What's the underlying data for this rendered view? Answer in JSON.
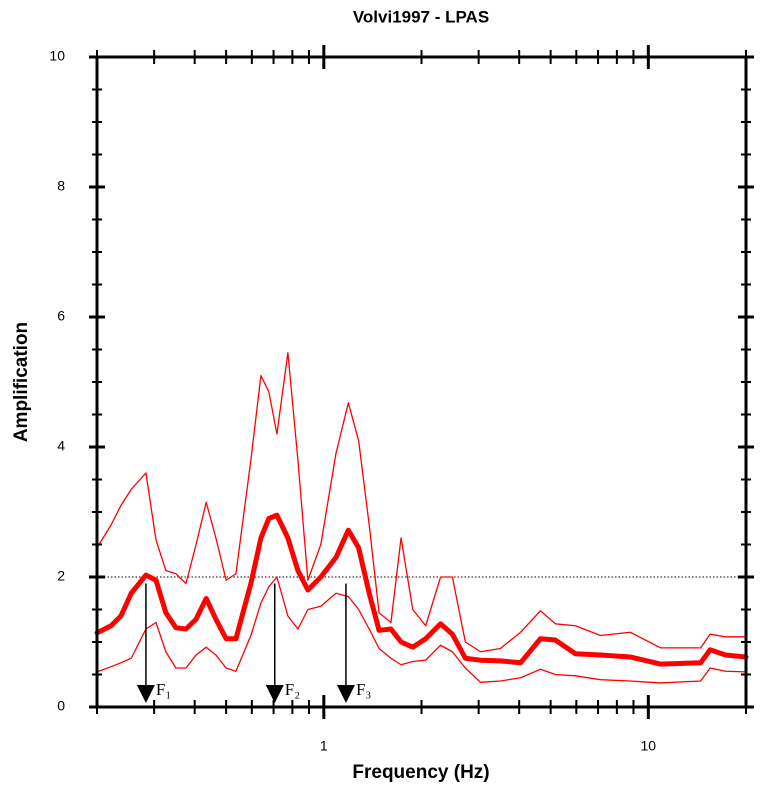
{
  "chart_data": {
    "type": "line",
    "title": "Volvi1997 - LPAS",
    "x_label": "Frequency (Hz)",
    "y_label": "Amplification",
    "x_scale": "log",
    "xlim": [
      0.2,
      20
    ],
    "ylim": [
      0,
      10
    ],
    "xticks": [
      1,
      10
    ],
    "yticks": [
      0,
      2,
      4,
      6,
      8,
      10
    ],
    "xminorticks": [
      0.2,
      0.3,
      0.4,
      0.5,
      0.6,
      0.7,
      0.8,
      0.9,
      2,
      3,
      4,
      5,
      6,
      7,
      8,
      9,
      20
    ],
    "yminorticks": [
      0.5,
      1,
      1.5,
      2.5,
      3,
      3.5,
      4.5,
      5,
      5.5,
      6.5,
      7,
      7.5,
      8.5,
      9,
      9.5
    ],
    "reference_line": {
      "y": 2,
      "color": "#000000"
    },
    "x": [
      0.2,
      0.221,
      0.237,
      0.255,
      0.283,
      0.304,
      0.326,
      0.35,
      0.376,
      0.404,
      0.434,
      0.465,
      0.5,
      0.536,
      0.596,
      0.64,
      0.677,
      0.717,
      0.775,
      0.832,
      0.893,
      0.979,
      1.09,
      1.19,
      1.28,
      1.38,
      1.48,
      1.61,
      1.73,
      1.88,
      2.06,
      2.29,
      2.49,
      2.73,
      3.04,
      3.5,
      4.04,
      4.65,
      5.17,
      5.96,
      7.12,
      8.8,
      10.9,
      14.5,
      15.5,
      17.3,
      20
    ],
    "series": [
      {
        "color": "#ff0000",
        "linewidth": 1.3,
        "values": [
          2.45,
          2.8,
          3.1,
          3.35,
          3.6,
          2.57,
          2.1,
          2.05,
          1.9,
          2.5,
          3.15,
          2.6,
          1.95,
          2.05,
          3.8,
          5.1,
          4.85,
          4.2,
          5.45,
          3.8,
          1.95,
          2.5,
          3.9,
          4.68,
          4.1,
          2.8,
          1.45,
          1.3,
          2.6,
          1.5,
          1.25,
          2.0,
          2.0,
          1.0,
          0.85,
          0.9,
          1.15,
          1.48,
          1.28,
          1.25,
          1.1,
          1.15,
          0.91,
          0.91,
          1.12,
          1.08,
          1.08
        ]
      },
      {
        "color": "#ff0000",
        "linewidth": 1.3,
        "values": [
          0.54,
          0.62,
          0.68,
          0.75,
          1.2,
          1.3,
          0.85,
          0.6,
          0.6,
          0.8,
          0.92,
          0.8,
          0.6,
          0.55,
          1.1,
          1.6,
          1.85,
          2.0,
          1.4,
          1.2,
          1.5,
          1.55,
          1.75,
          1.7,
          1.5,
          1.2,
          0.9,
          0.75,
          0.65,
          0.7,
          0.72,
          0.95,
          0.85,
          0.6,
          0.38,
          0.4,
          0.45,
          0.58,
          0.5,
          0.48,
          0.42,
          0.4,
          0.37,
          0.4,
          0.6,
          0.55,
          0.54
        ]
      },
      {
        "color": "#ff0000",
        "linewidth": 5,
        "values": [
          1.14,
          1.25,
          1.4,
          1.75,
          2.03,
          1.95,
          1.45,
          1.22,
          1.2,
          1.35,
          1.67,
          1.35,
          1.05,
          1.05,
          1.9,
          2.6,
          2.9,
          2.95,
          2.6,
          2.1,
          1.8,
          2.0,
          2.3,
          2.72,
          2.45,
          1.75,
          1.18,
          1.2,
          1.0,
          0.92,
          1.05,
          1.28,
          1.12,
          0.75,
          0.72,
          0.71,
          0.68,
          1.05,
          1.03,
          0.82,
          0.8,
          0.77,
          0.66,
          0.68,
          0.88,
          0.8,
          0.77
        ]
      }
    ],
    "arrows": [
      {
        "text": "F₁",
        "x": 0.283,
        "y_from": 1.9,
        "y_to": 0
      },
      {
        "text": "F₂",
        "x": 0.706,
        "y_from": 1.9,
        "y_to": 0
      },
      {
        "text": "F₃",
        "x": 1.17,
        "y_from": 1.9,
        "y_to": 0
      }
    ]
  }
}
